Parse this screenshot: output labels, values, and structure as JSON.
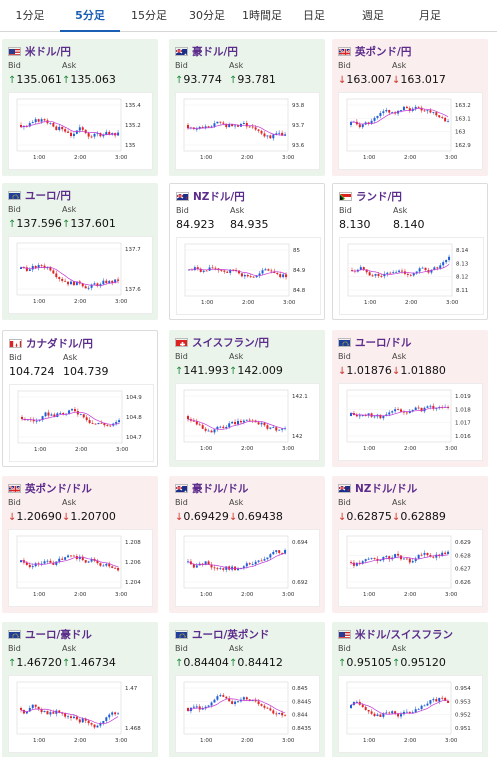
{
  "tabs": [
    "1分足",
    "5分足",
    "15分足",
    "30分足",
    "1時間足",
    "日足",
    "週足",
    "月足"
  ],
  "active_tab": 1,
  "bid_label": "Bid",
  "ask_label": "Ask",
  "colors": {
    "up_arrow": "#1f8a3b",
    "down_arrow": "#d2342c",
    "candle_up": "#1f5fd6",
    "candle_down": "#e02424",
    "ma": "#c23ad6",
    "title": "#5b2c8c"
  },
  "pairs": [
    {
      "name": "米ドル/円",
      "flag": "us",
      "dir": "up",
      "bid": "135.061",
      "ask": "135.063",
      "chart": {
        "x_ticks": [
          "1:00",
          "2:00",
          "3:00"
        ],
        "y_ticks": [
          "135.4",
          "135.2",
          "135"
        ]
      }
    },
    {
      "name": "豪ドル/円",
      "flag": "au",
      "dir": "up",
      "bid": "93.774",
      "ask": "93.781",
      "chart": {
        "x_ticks": [
          "1:00",
          "2:00",
          "3:00"
        ],
        "y_ticks": [
          "93.8",
          "93.7",
          "93.6"
        ]
      }
    },
    {
      "name": "英ポンド/円",
      "flag": "gb",
      "dir": "down",
      "bid": "163.007",
      "ask": "163.017",
      "chart": {
        "x_ticks": [
          "1:00",
          "2:00",
          "3:00"
        ],
        "y_ticks": [
          "163.2",
          "163.1",
          "163",
          "162.9"
        ]
      }
    },
    {
      "name": "ユーロ/円",
      "flag": "eu",
      "dir": "up",
      "bid": "137.596",
      "ask": "137.601",
      "chart": {
        "x_ticks": [
          "1:00",
          "2:00",
          "3:00"
        ],
        "y_ticks": [
          "137.7",
          "137.6"
        ]
      }
    },
    {
      "name": "NZドル/円",
      "flag": "nz",
      "dir": "none",
      "bid": "84.923",
      "ask": "84.935",
      "chart": {
        "x_ticks": [
          "1:00",
          "2:00",
          "3:00"
        ],
        "y_ticks": [
          "85",
          "84.9",
          "84.8"
        ]
      }
    },
    {
      "name": "ランド/円",
      "flag": "za",
      "dir": "none",
      "bid": "8.130",
      "ask": "8.140",
      "chart": {
        "x_ticks": [
          "1:00",
          "2:00",
          "3:00"
        ],
        "y_ticks": [
          "8.14",
          "8.13",
          "8.12",
          "8.11"
        ]
      }
    },
    {
      "name": "カナダドル/円",
      "flag": "ca",
      "dir": "none",
      "bid": "104.724",
      "ask": "104.739",
      "chart": {
        "x_ticks": [
          "1:00",
          "2:00",
          "3:00"
        ],
        "y_ticks": [
          "104.9",
          "104.8",
          "104.7"
        ]
      }
    },
    {
      "name": "スイスフラン/円",
      "flag": "ch",
      "dir": "up",
      "bid": "141.993",
      "ask": "142.009",
      "chart": {
        "x_ticks": [
          "1:00",
          "2:00",
          "3:00"
        ],
        "y_ticks": [
          "142.1",
          "142"
        ]
      }
    },
    {
      "name": "ユーロ/ドル",
      "flag": "eu",
      "dir": "down",
      "bid": "1.01876",
      "ask": "1.01880",
      "chart": {
        "x_ticks": [
          "1:00",
          "2:00",
          "3:00"
        ],
        "y_ticks": [
          "1.019",
          "1.018",
          "1.017",
          "1.016"
        ]
      }
    },
    {
      "name": "英ポンド/ドル",
      "flag": "gb",
      "dir": "down",
      "bid": "1.20690",
      "ask": "1.20700",
      "chart": {
        "x_ticks": [
          "1:00",
          "2:00",
          "3:00"
        ],
        "y_ticks": [
          "1.208",
          "1.206",
          "1.204"
        ]
      }
    },
    {
      "name": "豪ドル/ドル",
      "flag": "au",
      "dir": "down",
      "bid": "0.69429",
      "ask": "0.69438",
      "chart": {
        "x_ticks": [
          "1:00",
          "2:00",
          "3:00"
        ],
        "y_ticks": [
          "0.694",
          "0.692"
        ]
      }
    },
    {
      "name": "NZドル/ドル",
      "flag": "nz",
      "dir": "down",
      "bid": "0.62875",
      "ask": "0.62889",
      "chart": {
        "x_ticks": [
          "1:00",
          "2:00",
          "3:00"
        ],
        "y_ticks": [
          "0.629",
          "0.628",
          "0.627",
          "0.626"
        ]
      }
    },
    {
      "name": "ユーロ/豪ドル",
      "flag": "eu",
      "dir": "up",
      "bid": "1.46720",
      "ask": "1.46734",
      "chart": {
        "x_ticks": [
          "1:00",
          "2:00",
          "3:00"
        ],
        "y_ticks": [
          "1.47",
          "1.468"
        ]
      }
    },
    {
      "name": "ユーロ/英ポンド",
      "flag": "eu",
      "dir": "up",
      "bid": "0.84404",
      "ask": "0.84412",
      "chart": {
        "x_ticks": [
          "1:00",
          "2:00",
          "3:00"
        ],
        "y_ticks": [
          "0.845",
          "0.8445",
          "0.844",
          "0.8435"
        ]
      }
    },
    {
      "name": "米ドル/スイスフラン",
      "flag": "us",
      "dir": "up",
      "bid": "0.95105",
      "ask": "0.95120",
      "chart": {
        "x_ticks": [
          "1:00",
          "2:00",
          "3:00"
        ],
        "y_ticks": [
          "0.954",
          "0.953",
          "0.952",
          "0.951"
        ]
      }
    }
  ]
}
